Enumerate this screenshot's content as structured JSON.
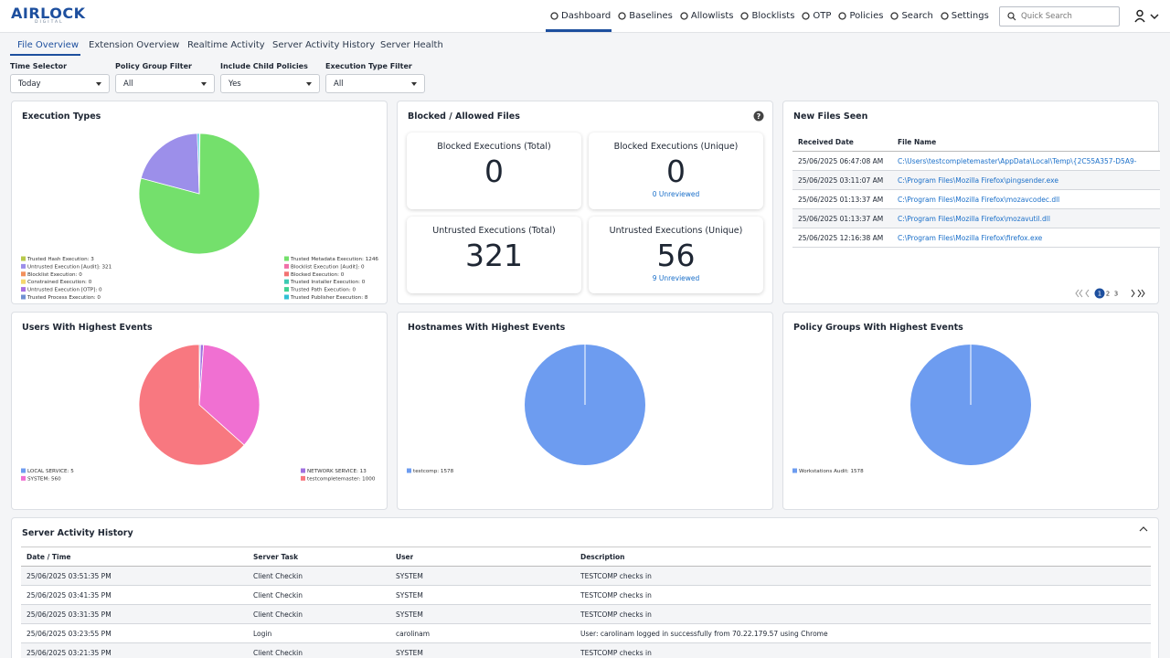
{
  "header": {
    "logo": "AIRLOCK",
    "logo_sub": "DIGITAL",
    "nav": [
      "Dashboard",
      "Baselines",
      "Allowlists",
      "Blocklists",
      "OTP",
      "Policies",
      "Search",
      "Settings"
    ],
    "search_placeholder": "Quick Search"
  },
  "tabs": [
    "File Overview",
    "Extension Overview",
    "Realtime Activity",
    "Server Activity History",
    "Server Health"
  ],
  "filters": [
    {
      "label": "Time Selector",
      "value": "Today"
    },
    {
      "label": "Policy Group Filter",
      "value": "All"
    },
    {
      "label": "Include Child Policies",
      "value": "Yes"
    },
    {
      "label": "Execution Type Filter",
      "value": "All"
    }
  ],
  "execution_types": {
    "title": "Execution Types",
    "chart": {
      "type": "pie",
      "values": [
        3,
        1246,
        321,
        0,
        0,
        0,
        0,
        0,
        0,
        0,
        0,
        8
      ],
      "value_labels": [
        "Trusted Hash Execution: 3",
        "Trusted Metadata Execution: 1246",
        "Untrusted Execution [Audit]: 321",
        "Blocklist Execution [Audit]: 0",
        "Blocklist Execution: 0",
        "Blocked Execution: 0",
        "Constrained Execution: 0",
        "Trusted Installer Execution: 0",
        "Untrusted Execution [OTP]: 0",
        "Trusted Path Execution: 0",
        "Trusted Process Execution: 0",
        "Trusted Publisher Execution: 8"
      ],
      "colors": [
        "#b8c94c",
        "#74e06c",
        "#9c8fea",
        "#f06fa8",
        "#f2905c",
        "#f27272",
        "#f5d76e",
        "#3ccab2",
        "#a870e2",
        "#40d293",
        "#7090d2",
        "#30c0d4"
      ]
    }
  },
  "blocked_allowed": {
    "title": "Blocked / Allowed Files",
    "help": "?",
    "cards": [
      {
        "title": "Blocked Executions (Total)",
        "value": 0
      },
      {
        "title": "Blocked Executions (Unique)",
        "value": 0,
        "link": "0 Unreviewed"
      },
      {
        "title": "Untrusted Executions (Total)",
        "value": 321
      },
      {
        "title": "Untrusted Executions (Unique)",
        "value": 56,
        "link": "9 Unreviewed"
      }
    ]
  },
  "new_files": {
    "title": "New Files Seen",
    "columns": [
      "Received Date",
      "File Name"
    ],
    "rows": [
      [
        "25/06/2025 06:47:08 AM",
        "C:\\Users\\testcompletemaster\\AppData\\Local\\Temp\\{2C55A357-D5A9-"
      ],
      [
        "25/06/2025 03:11:07 AM",
        "C:\\Program Files\\Mozilla Firefox\\pingsender.exe"
      ],
      [
        "25/06/2025 01:13:37 AM",
        "C:\\Program Files\\Mozilla Firefox\\mozavcodec.dll"
      ],
      [
        "25/06/2025 01:13:37 AM",
        "C:\\Program Files\\Mozilla Firefox\\mozavutil.dll"
      ],
      [
        "25/06/2025 12:16:38 AM",
        "C:\\Program Files\\Mozilla Firefox\\firefox.exe"
      ]
    ],
    "pages": [
      1,
      2,
      3
    ]
  },
  "users": {
    "title": "Users With Highest Events",
    "chart": {
      "type": "pie",
      "values": [
        5,
        13,
        560,
        1000
      ],
      "value_labels": [
        "LOCAL SERVICE: 5",
        "NETWORK SERVICE: 13",
        "SYSTEM: 560",
        "testcompletemaster: 1000"
      ],
      "colors": [
        "#6f9cf0",
        "#a070e0",
        "#f070d2",
        "#f87880"
      ]
    }
  },
  "hostnames": {
    "title": "Hostnames With Highest Events",
    "chart": {
      "type": "pie",
      "values": [
        1578
      ],
      "value_labels": [
        "testcomp: 1578"
      ],
      "colors": [
        "#6d9cf0"
      ]
    }
  },
  "policy_groups": {
    "title": "Policy Groups With Highest Events",
    "chart": {
      "type": "pie",
      "values": [
        1578
      ],
      "value_labels": [
        "Workstations Audit: 1578"
      ],
      "colors": [
        "#6d9cf0"
      ]
    }
  },
  "server_activity": {
    "title": "Server Activity History",
    "columns": [
      "Date / Time",
      "Server Task",
      "User",
      "Description"
    ],
    "rows": [
      [
        "25/06/2025 03:51:35 PM",
        "Client Checkin",
        "SYSTEM",
        "TESTCOMP checks in"
      ],
      [
        "25/06/2025 03:41:35 PM",
        "Client Checkin",
        "SYSTEM",
        "TESTCOMP checks in"
      ],
      [
        "25/06/2025 03:31:35 PM",
        "Client Checkin",
        "SYSTEM",
        "TESTCOMP checks in"
      ],
      [
        "25/06/2025 03:23:55 PM",
        "Login",
        "carolinam",
        "User: carolinam logged in successfully from 70.22.179.57 using Chrome"
      ],
      [
        "25/06/2025 03:21:35 PM",
        "Client Checkin",
        "SYSTEM",
        "TESTCOMP checks in"
      ]
    ]
  }
}
